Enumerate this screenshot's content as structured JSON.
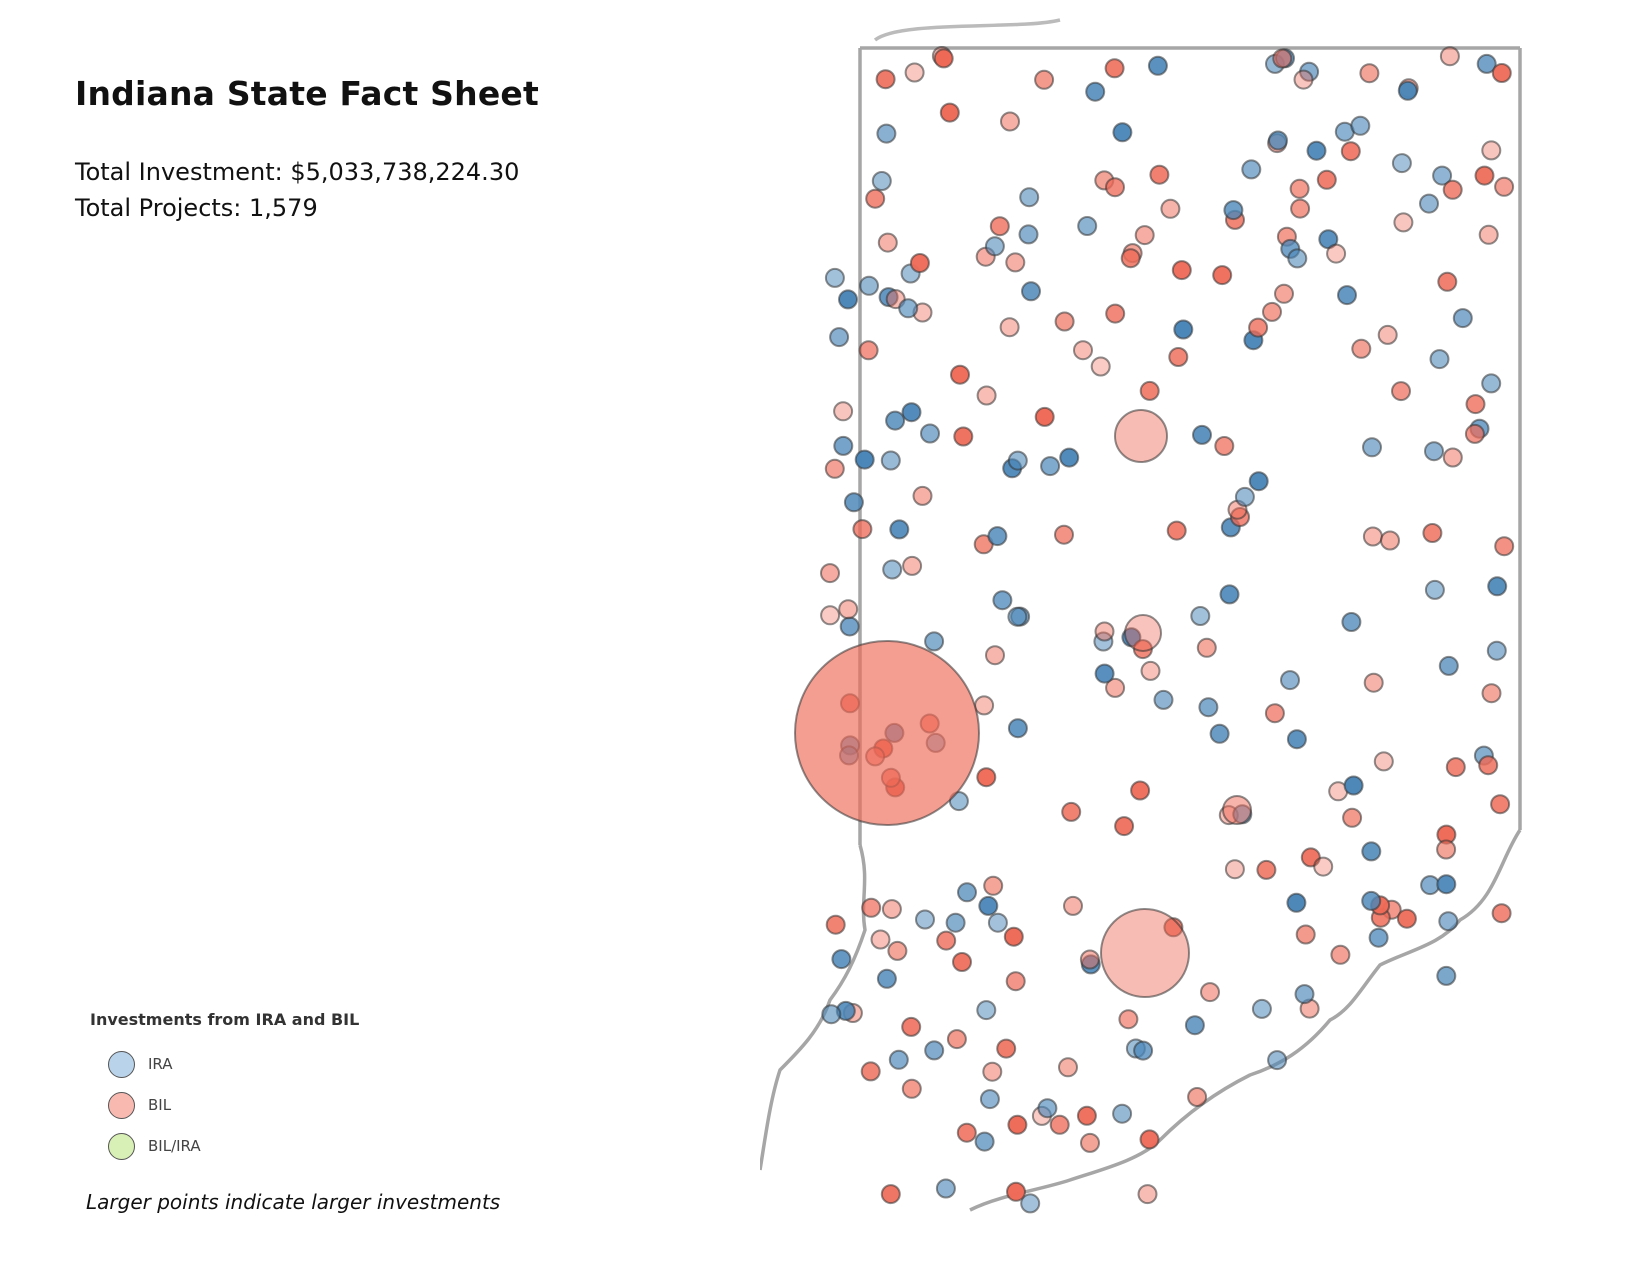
{
  "title": "Indiana State Fact Sheet",
  "stats": {
    "investment": "Total Investment: $5,033,738,224.30",
    "projects": "Total Projects: 1,579"
  },
  "legend": {
    "title": "Investments from IRA and BIL",
    "items": [
      {
        "label": "IRA",
        "color": "#b9d3ea"
      },
      {
        "label": "BIL",
        "color": "#f8b9b1"
      },
      {
        "label": "BIL/IRA",
        "color": "#d8efb5"
      }
    ]
  },
  "note": "Larger points indicate larger investments",
  "colors": {
    "ira": "#4a86b8",
    "bil": "#ee6a57",
    "border": "#9a9a9a"
  }
}
